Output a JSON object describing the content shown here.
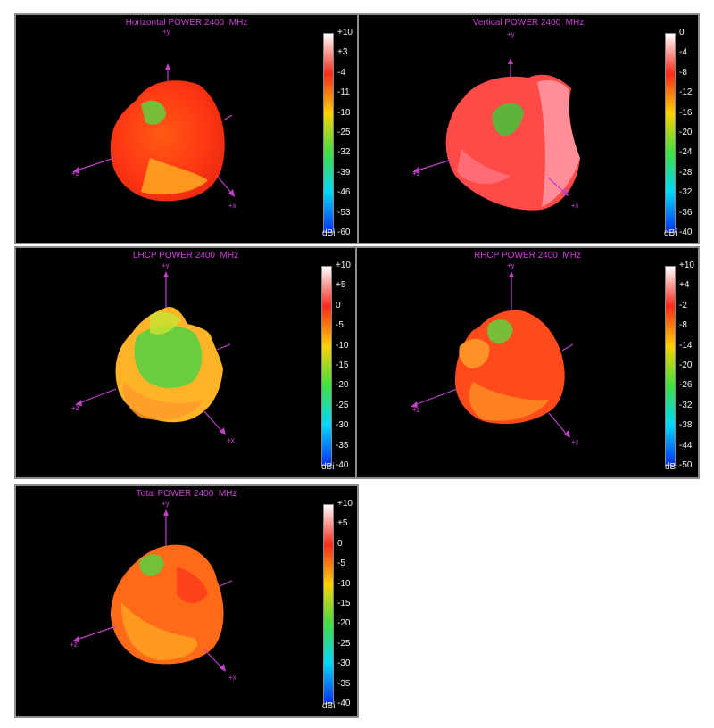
{
  "panels": [
    {
      "title": "Horizontal POWER 2400  MHz",
      "unit": "dBi",
      "colorbar_ticks": [
        "+10",
        "+3",
        "-4",
        "-11",
        "-18",
        "-25",
        "-32",
        "-39",
        "-46",
        "-53",
        "-60"
      ],
      "colorbar_stops": [
        "#ffffff",
        "#ff2a1a",
        "#ffd000",
        "#40e040",
        "#00d8ff",
        "#0030ff"
      ],
      "axis_labels": {
        "y": "+y",
        "z": "+z",
        "x": "+x"
      }
    },
    {
      "title": "Vertical POWER 2400  MHz",
      "unit": "dBi",
      "colorbar_ticks": [
        "0",
        "-4",
        "-8",
        "-12",
        "-16",
        "-20",
        "-24",
        "-28",
        "-32",
        "-36",
        "-40"
      ],
      "colorbar_stops": [
        "#ffffff",
        "#ff2a1a",
        "#ffd000",
        "#40e040",
        "#00d8ff",
        "#0030ff"
      ],
      "axis_labels": {
        "y": "+y",
        "z": "+z",
        "x": "+x"
      }
    },
    {
      "title": "LHCP POWER 2400  MHz",
      "unit": "dBi",
      "colorbar_ticks": [
        "+10",
        "+5",
        "0",
        "-5",
        "-10",
        "-15",
        "-20",
        "-25",
        "-30",
        "-35",
        "-40"
      ],
      "colorbar_stops": [
        "#ffffff",
        "#ff2a1a",
        "#ffd000",
        "#40e040",
        "#00d8ff",
        "#0030ff"
      ],
      "axis_labels": {
        "y": "+y",
        "z": "+z",
        "x": "+x"
      }
    },
    {
      "title": "RHCP POWER 2400  MHz",
      "unit": "dBi",
      "colorbar_ticks": [
        "+10",
        "+4",
        "-2",
        "-8",
        "-14",
        "-20",
        "-26",
        "-32",
        "-38",
        "-44",
        "-50"
      ],
      "colorbar_stops": [
        "#ffffff",
        "#ff2a1a",
        "#ffd000",
        "#40e040",
        "#00d8ff",
        "#0030ff"
      ],
      "axis_labels": {
        "y": "+y",
        "z": "+z",
        "x": "+x"
      }
    },
    {
      "title": "Total POWER 2400  MHz",
      "unit": "dBi",
      "colorbar_ticks": [
        "+10",
        "+5",
        "0",
        "-5",
        "-10",
        "-15",
        "-20",
        "-25",
        "-30",
        "-35",
        "-40"
      ],
      "colorbar_stops": [
        "#ffffff",
        "#ff2a1a",
        "#ffd000",
        "#40e040",
        "#00d8ff",
        "#0030ff"
      ],
      "axis_labels": {
        "y": "+y",
        "z": "+z",
        "x": "+x"
      }
    }
  ],
  "chart_data": [
    {
      "type": "heatmap",
      "title": "Horizontal POWER 2400  MHz",
      "colorbar_label": "dBi",
      "range": [
        -60,
        10
      ],
      "colorbar_ticks": [
        10,
        3,
        -4,
        -11,
        -18,
        -25,
        -32,
        -39,
        -46,
        -53,
        -60
      ],
      "axes": [
        "+y",
        "+z",
        "+x"
      ]
    },
    {
      "type": "heatmap",
      "title": "Vertical POWER 2400  MHz",
      "colorbar_label": "dBi",
      "range": [
        -40,
        0
      ],
      "colorbar_ticks": [
        0,
        -4,
        -8,
        -12,
        -16,
        -20,
        -24,
        -28,
        -32,
        -36,
        -40
      ],
      "axes": [
        "+y",
        "+z",
        "+x"
      ]
    },
    {
      "type": "heatmap",
      "title": "LHCP POWER 2400  MHz",
      "colorbar_label": "dBi",
      "range": [
        -40,
        10
      ],
      "colorbar_ticks": [
        10,
        5,
        0,
        -5,
        -10,
        -15,
        -20,
        -25,
        -30,
        -35,
        -40
      ],
      "axes": [
        "+y",
        "+z",
        "+x"
      ]
    },
    {
      "type": "heatmap",
      "title": "RHCP POWER 2400  MHz",
      "colorbar_label": "dBi",
      "range": [
        -50,
        10
      ],
      "colorbar_ticks": [
        10,
        4,
        -2,
        -8,
        -14,
        -20,
        -26,
        -32,
        -38,
        -44,
        -50
      ],
      "axes": [
        "+y",
        "+z",
        "+x"
      ]
    },
    {
      "type": "heatmap",
      "title": "Total POWER 2400  MHz",
      "colorbar_label": "dBi",
      "range": [
        -40,
        10
      ],
      "colorbar_ticks": [
        10,
        5,
        0,
        -5,
        -10,
        -15,
        -20,
        -25,
        -30,
        -35,
        -40
      ],
      "axes": [
        "+y",
        "+z",
        "+x"
      ]
    }
  ]
}
